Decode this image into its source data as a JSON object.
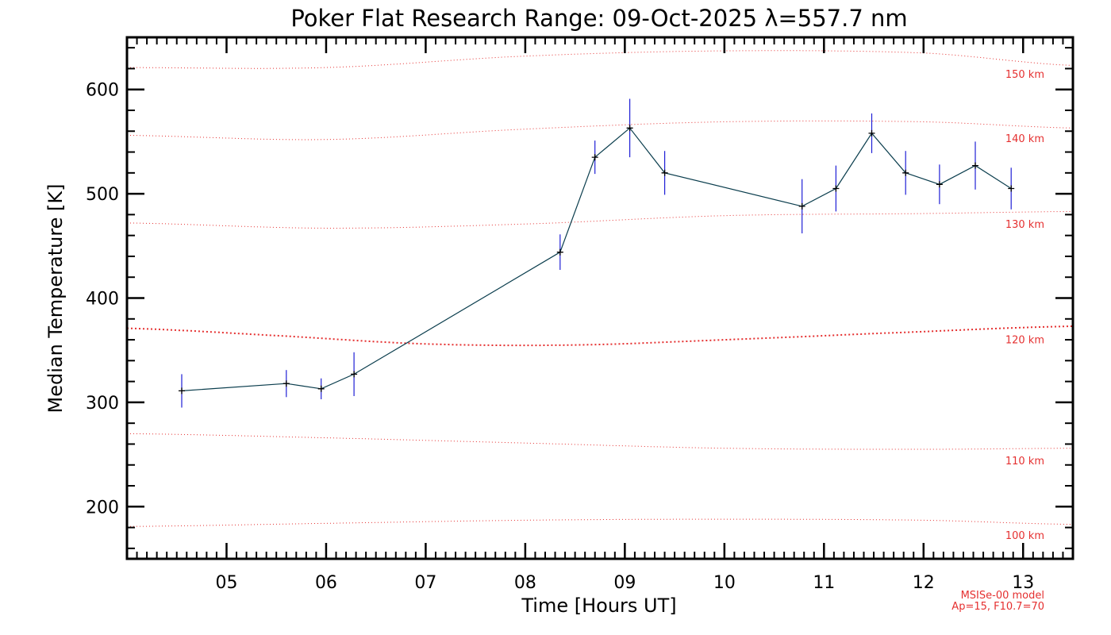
{
  "chart_data": {
    "type": "line",
    "title": "Poker Flat Research Range: 09-Oct-2025 λ=557.7 nm",
    "xlabel": "Time [Hours UT]",
    "ylabel": "Median Temperature [K]",
    "xlim": [
      4.0,
      13.5
    ],
    "ylim": [
      150,
      650
    ],
    "x_ticks": [
      5,
      6,
      7,
      8,
      9,
      10,
      11,
      12,
      13
    ],
    "x_tick_labels": [
      "05",
      "06",
      "07",
      "08",
      "09",
      "10",
      "11",
      "12",
      "13"
    ],
    "y_ticks": [
      200,
      300,
      400,
      500,
      600
    ],
    "y_tick_labels": [
      "200",
      "300",
      "400",
      "500",
      "600"
    ],
    "grid": false,
    "line_color": "#0a3d4d",
    "errorbar_color": "#1f1fd6",
    "model_color": "#e53030",
    "series": [
      {
        "x": [
          4.55,
          5.6,
          5.95,
          6.28,
          8.35,
          8.7,
          9.05,
          9.4,
          10.78,
          11.12,
          11.48,
          11.82,
          12.16,
          12.52,
          12.88
        ],
        "y": [
          311,
          318,
          313,
          327,
          444,
          535,
          563,
          520,
          488,
          505,
          558,
          520,
          509,
          527,
          505
        ],
        "err": [
          16,
          13,
          10,
          21,
          17,
          16,
          28,
          21,
          26,
          22,
          19,
          21,
          19,
          23,
          20
        ]
      }
    ],
    "model_curves": [
      {
        "label": "100 km",
        "x": [
          4.0,
          6.0,
          8.0,
          10.0,
          12.0,
          13.5
        ],
        "y": [
          181,
          184,
          187,
          188,
          187,
          183
        ],
        "style": "thin"
      },
      {
        "label": "110 km",
        "x": [
          4.0,
          6.0,
          8.0,
          10.0,
          12.0,
          13.5
        ],
        "y": [
          270,
          266,
          261,
          256,
          255,
          256
        ],
        "style": "thin"
      },
      {
        "label": "120 km",
        "x": [
          4.0,
          5.5,
          7.0,
          8.5,
          10.0,
          11.5,
          13.5
        ],
        "y": [
          371,
          364,
          356,
          355,
          360,
          366,
          373
        ],
        "style": "thick"
      },
      {
        "label": "130 km",
        "x": [
          4.0,
          6.0,
          8.0,
          10.0,
          12.0,
          13.5
        ],
        "y": [
          472,
          467,
          471,
          479,
          481,
          483
        ],
        "style": "thin"
      },
      {
        "label": "140 km",
        "x": [
          4.0,
          6.0,
          8.0,
          10.0,
          12.0,
          13.5
        ],
        "y": [
          556,
          552,
          562,
          569,
          569,
          563
        ],
        "style": "thin"
      },
      {
        "label": "150 km",
        "x": [
          4.0,
          6.0,
          8.0,
          10.0,
          12.0,
          13.5
        ],
        "y": [
          621,
          621,
          632,
          637,
          635,
          623
        ],
        "style": "thin"
      }
    ],
    "model_note": [
      "MSISe-00 model",
      "Ap=15, F10.7=70"
    ]
  }
}
